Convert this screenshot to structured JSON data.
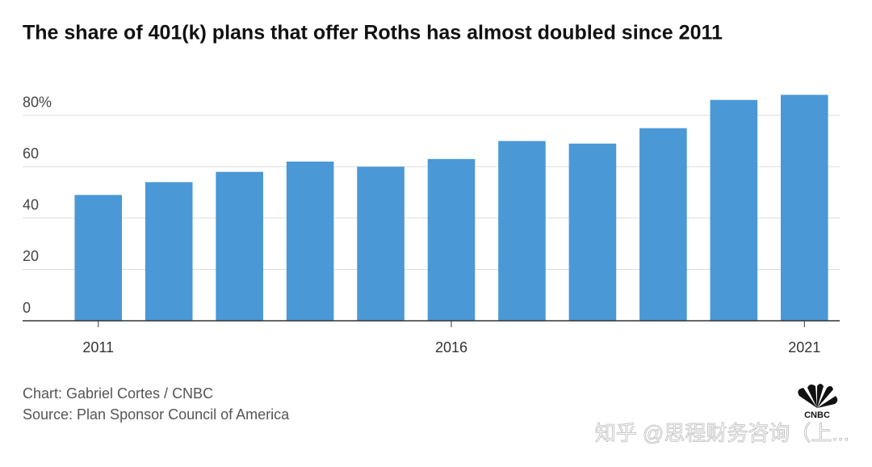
{
  "chart_data": {
    "type": "bar",
    "title": "The share of 401(k) plans that offer Roths has almost doubled since 2011",
    "categories": [
      "2011",
      null,
      null,
      null,
      null,
      "2016",
      null,
      null,
      null,
      null,
      "2021"
    ],
    "values": [
      49,
      54,
      58,
      62,
      60,
      63,
      70,
      69,
      75,
      86,
      88
    ],
    "color": "#4a98d6",
    "ylim": [
      0,
      90
    ],
    "yticks": [
      0,
      20,
      40,
      60,
      {
        "value": 80,
        "label": "80%"
      }
    ],
    "grid": true,
    "credit": "Chart: Gabriel Cortes / CNBC",
    "source": "Source: Plan Sponsor Council of America"
  },
  "logo": "CNBC",
  "watermark": "知乎 @思程财务咨询（上..."
}
